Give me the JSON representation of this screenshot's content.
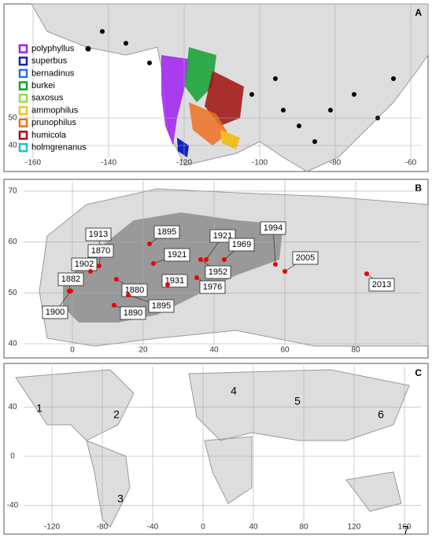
{
  "panels": [
    {
      "label": "A",
      "lat_ticks": [
        40,
        50
      ],
      "lon_ticks": [
        -160,
        -140,
        -120,
        -100,
        -80,
        -60
      ],
      "legend": [
        {
          "name": "polyphyllus",
          "color": "#a020f0"
        },
        {
          "name": "superbus",
          "color": "#1020c0"
        },
        {
          "name": "bernadinus",
          "color": "#3070e0"
        },
        {
          "name": "burkei",
          "color": "#10a030"
        },
        {
          "name": "saxosus",
          "color": "#90e040"
        },
        {
          "name": "ammophilus",
          "color": "#f0c020"
        },
        {
          "name": "prunophilus",
          "color": "#f07020"
        },
        {
          "name": "humicola",
          "color": "#a01010"
        },
        {
          "name": "holmgrenanus",
          "color": "#20c0d0"
        }
      ]
    },
    {
      "label": "B",
      "lat_ticks": [
        40,
        50,
        60,
        70
      ],
      "lon_ticks": [
        0,
        20,
        40,
        60,
        80
      ],
      "years": [
        1913,
        1870,
        1895,
        1921,
        1994,
        1969,
        1921,
        1952,
        1902,
        2005,
        1882,
        1880,
        1931,
        1976,
        2013,
        1900,
        1895,
        1890
      ]
    },
    {
      "label": "C",
      "lat_ticks": [
        -40,
        0,
        40
      ],
      "lon_ticks": [
        -120,
        -80,
        -40,
        0,
        40,
        80,
        120,
        160
      ],
      "regions": [
        1,
        2,
        3,
        4,
        5,
        6,
        7
      ]
    }
  ]
}
